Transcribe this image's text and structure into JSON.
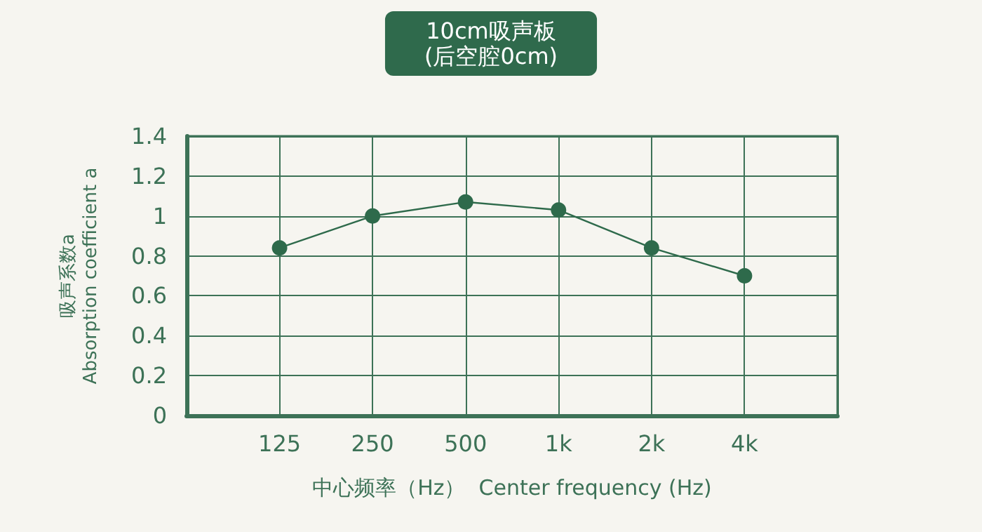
{
  "chart_data": {
    "type": "line",
    "title": "10cm吸声板",
    "subtitle": "(后空腔0cm)",
    "xlabel": "中心频率（Hz）  Center frequency (Hz)",
    "ylabel": "吸声系数a\nAbsorption coefficient a",
    "categories": [
      "125",
      "250",
      "500",
      "1k",
      "2k",
      "4k"
    ],
    "series": [
      {
        "color": "#2e6a4b",
        "values": [
          0.84,
          1.0,
          1.07,
          1.03,
          0.84,
          0.7
        ]
      }
    ],
    "ylim": [
      0,
      1.4
    ],
    "yticks": [
      0,
      0.2,
      0.4,
      0.6,
      0.8,
      1,
      1.2,
      1.4
    ],
    "grid": true,
    "marker": "circle",
    "line_style": "solid"
  }
}
